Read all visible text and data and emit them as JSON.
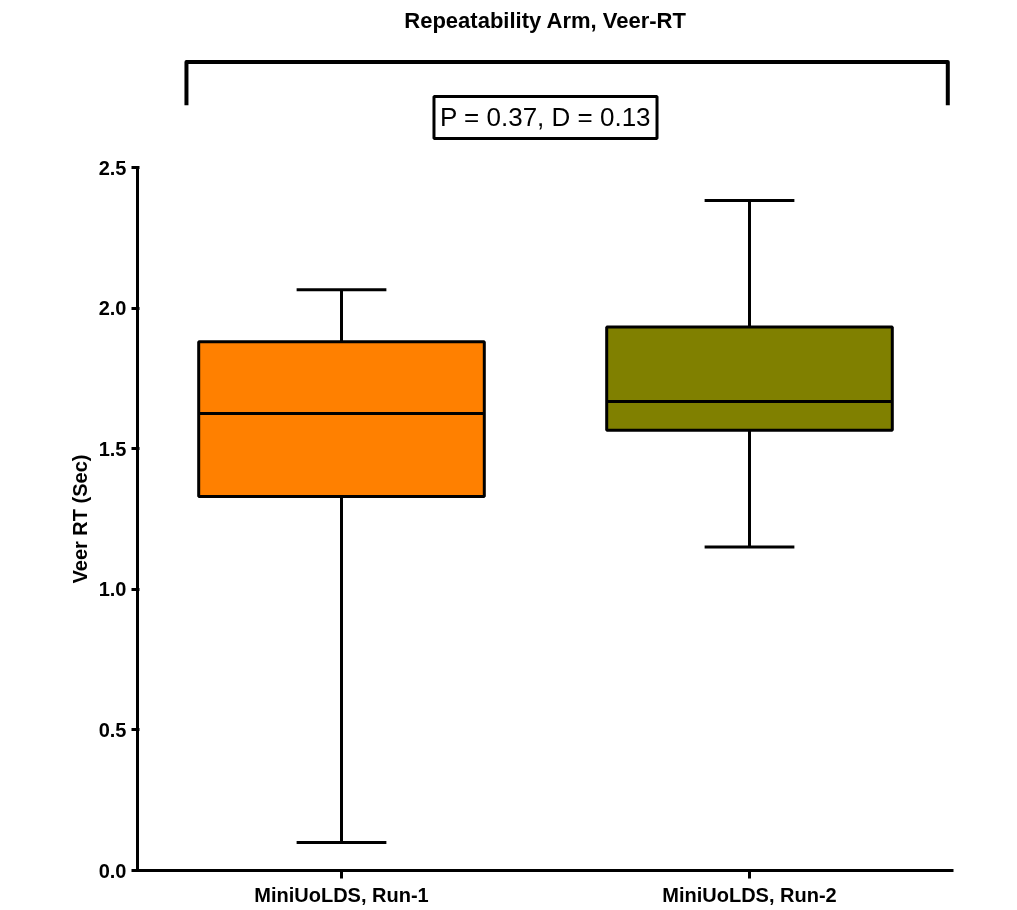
{
  "chart_data": {
    "type": "box",
    "title": "Repeatability Arm, Veer-RT",
    "ylabel": "Veer RT (Sec)",
    "categories": [
      "MiniUoLDS, Run-1",
      "MiniUoLDS, Run-2"
    ],
    "colors": [
      "#ff8000",
      "#808000"
    ],
    "boxes": [
      {
        "low": 0.1,
        "q1": 1.33,
        "median": 1.625,
        "q3": 1.88,
        "high": 2.065
      },
      {
        "low": 1.15,
        "q1": 1.566,
        "median": 1.668,
        "q3": 1.933,
        "high": 2.383
      }
    ],
    "ylim": [
      0,
      2.5
    ],
    "yticks": [
      {
        "value": 0,
        "label": "0.0"
      },
      0.5,
      {
        "value": 1,
        "label": "1.0"
      },
      1.5,
      {
        "value": 2,
        "label": "2.0"
      },
      2.5
    ],
    "annotations": [
      "P = 0.37, D = 0.13"
    ],
    "grid": false
  }
}
